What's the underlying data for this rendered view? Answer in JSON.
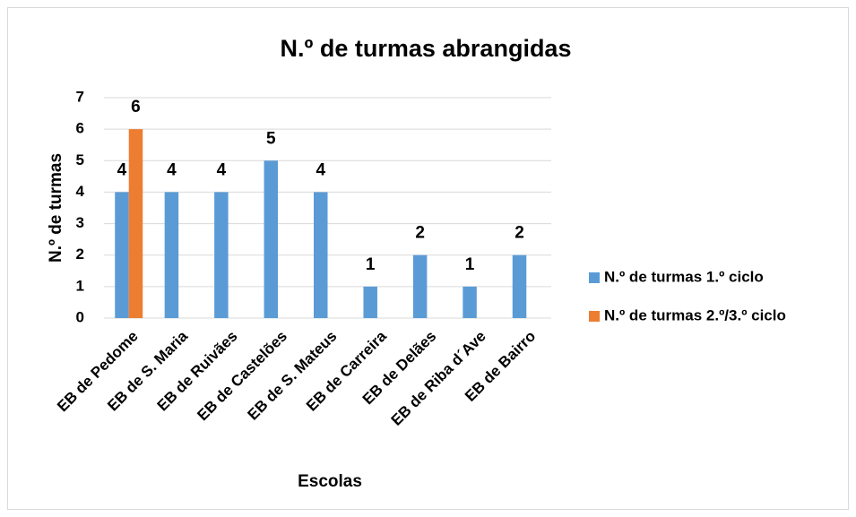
{
  "chart_data": {
    "type": "bar",
    "title": "N.º de turmas abrangidas",
    "x_label": "Escolas",
    "y_label": "N.º de turmas",
    "categories": [
      "EB de Pedome",
      "EB de S. Maria",
      "EB de Ruivães",
      "EB de Castelões",
      "EB de S. Mateus",
      "EB de Carreira",
      "EB de Delães",
      "EB de Riba d´Ave",
      "EB de Bairro"
    ],
    "series": [
      {
        "name": "N.º de turmas 1.º ciclo",
        "color": "#5b9bd5",
        "values": [
          4,
          4,
          4,
          5,
          4,
          1,
          2,
          1,
          2
        ]
      },
      {
        "name": "N.º de turmas 2.º/3.º ciclo",
        "color": "#ed7d31",
        "values": [
          6,
          null,
          null,
          null,
          null,
          null,
          null,
          null,
          null
        ]
      }
    ],
    "ylim": [
      0,
      7
    ],
    "yticks": [
      0,
      1,
      2,
      3,
      4,
      5,
      6,
      7
    ],
    "grid": true,
    "legend": "right"
  }
}
